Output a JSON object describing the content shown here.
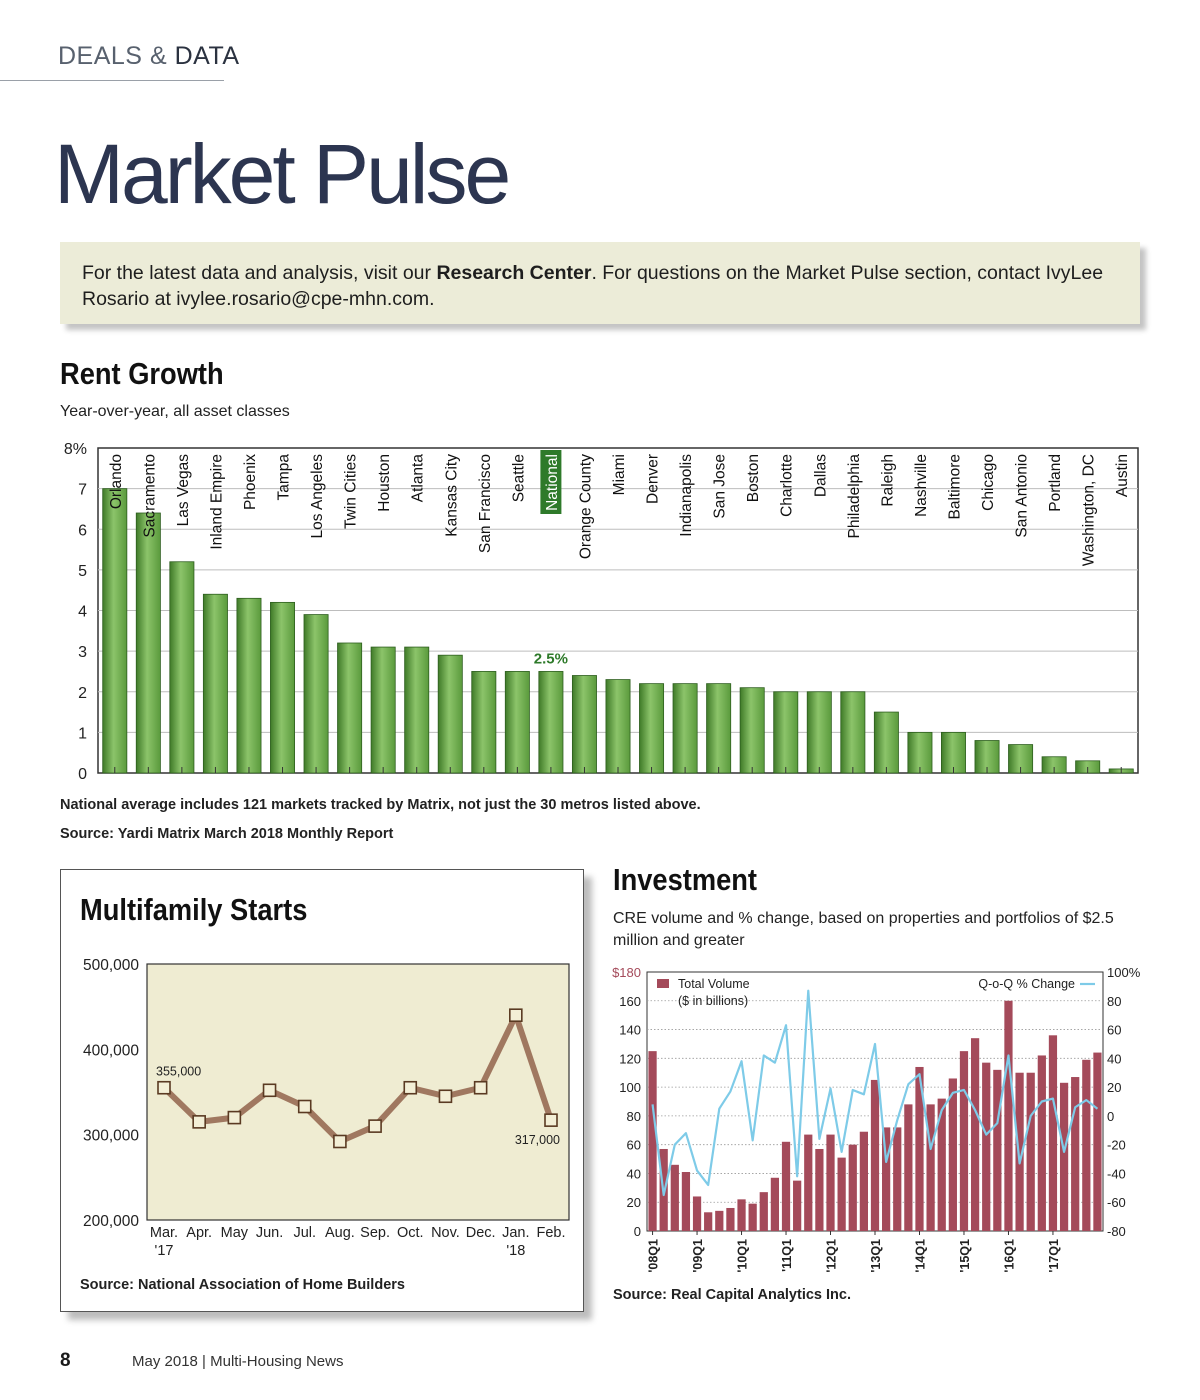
{
  "header": {
    "section_deals": "DEALS",
    "section_amp": "&",
    "section_data": "DATA",
    "title": "Market Pulse"
  },
  "info": {
    "text1": "For the latest data and analysis, visit our ",
    "bold": "Research Center",
    "text2": ". For questions on the Market Pulse section, contact IvyLee Rosario at ivylee.rosario@cpe-mhn.com."
  },
  "rent": {
    "title": "Rent Growth",
    "subtitle": "Year-over-year, all asset classes",
    "note": "National average includes 121 markets tracked by Matrix, not just the 30 metros listed above.",
    "source": "Source: Yardi Matrix March 2018 Monthly Report"
  },
  "starts": {
    "title": "Multifamily Starts",
    "source": "Source: National Association of Home Builders"
  },
  "investment": {
    "title": "Investment",
    "subtitle_line1": "CRE volume and % change, based on properties and portfolios of $2.5",
    "subtitle_line2": "million and greater",
    "source": "Source: Real Capital Analytics Inc."
  },
  "footer": {
    "page": "8",
    "text": "May 2018  |  Multi-Housing News"
  },
  "colors": {
    "bar_green": "#5a9a3c",
    "national_green": "#2e7a2a",
    "starts_line": "#a07860",
    "starts_bg": "#efecd2",
    "volume_bar": "#a44a5a",
    "qoq_line": "#7ecbe8"
  },
  "chart_data": [
    {
      "type": "bar",
      "title": "Rent Growth",
      "categories": [
        "Orlando",
        "Sacramento",
        "Las Vegas",
        "Inland Empire",
        "Phoenix",
        "Tampa",
        "Los Angeles",
        "Twin Cities",
        "Houston",
        "Atlanta",
        "Kansas City",
        "San Francisco",
        "Seattle",
        "National",
        "Orange County",
        "Miami",
        "Denver",
        "Indianapolis",
        "San Jose",
        "Boston",
        "Charlotte",
        "Dallas",
        "Philadelphia",
        "Raleigh",
        "Nashville",
        "Baltimore",
        "Chicago",
        "San Antonio",
        "Portland",
        "Washington, DC",
        "Austin"
      ],
      "values": [
        7.0,
        6.4,
        5.2,
        4.4,
        4.3,
        4.2,
        3.9,
        3.2,
        3.1,
        3.1,
        2.9,
        2.5,
        2.5,
        2.5,
        2.4,
        2.3,
        2.2,
        2.2,
        2.2,
        2.1,
        2.0,
        2.0,
        2.0,
        1.5,
        1.0,
        1.0,
        0.8,
        0.7,
        0.4,
        0.3,
        0.1
      ],
      "highlight": "National",
      "highlight_label": "2.5%",
      "ylim": [
        0,
        8
      ],
      "yticks": [
        "0",
        "1",
        "2",
        "3",
        "4",
        "5",
        "6",
        "7",
        "8%"
      ],
      "grid": true
    },
    {
      "type": "line",
      "title": "Multifamily Starts",
      "categories": [
        "Mar.",
        "Apr.",
        "May",
        "Jun.",
        "Jul.",
        "Aug.",
        "Sep.",
        "Oct.",
        "Nov.",
        "Dec.",
        "Jan.",
        "Feb."
      ],
      "year_labels": [
        "'17",
        "",
        "",
        "",
        "",
        "",
        "",
        "",
        "",
        "",
        "'18",
        ""
      ],
      "values": [
        355000,
        315000,
        320000,
        352000,
        333000,
        292000,
        310000,
        355000,
        345000,
        355000,
        440000,
        317000
      ],
      "data_labels": [
        {
          "index": 0,
          "text": "355,000"
        },
        {
          "index": 11,
          "text": "317,000"
        }
      ],
      "ylim": [
        200000,
        500000
      ],
      "yticks": [
        "200,000",
        "300,000",
        "400,000",
        "500,000"
      ],
      "grid": false
    },
    {
      "type": "bar",
      "title": "Investment",
      "x_tick_labels": [
        "'08Q1",
        "'09Q1",
        "'10Q1",
        "'11Q1",
        "'12Q1",
        "'13Q1",
        "'14Q1",
        "'15Q1",
        "'16Q1",
        "'17Q1"
      ],
      "series": [
        {
          "name": "Total Volume ($ in billions)",
          "axis": "left",
          "type": "bar",
          "values": [
            125,
            57,
            46,
            41,
            24,
            13,
            14,
            16,
            22,
            19,
            27,
            37,
            62,
            35,
            67,
            57,
            67,
            51,
            60,
            69,
            105,
            72,
            72,
            88,
            114,
            88,
            92,
            106,
            125,
            134,
            117,
            112,
            160,
            110,
            110,
            122,
            136,
            103,
            107,
            119,
            124
          ]
        },
        {
          "name": "Q-o-Q % Change",
          "axis": "right",
          "type": "line",
          "values": [
            8,
            -55,
            -20,
            -12,
            -38,
            -48,
            5,
            17,
            38,
            -17,
            42,
            37,
            63,
            -42,
            87,
            -16,
            19,
            -25,
            18,
            15,
            50,
            -32,
            -3,
            22,
            29,
            -23,
            4,
            16,
            18,
            4,
            -13,
            -5,
            42,
            -33,
            0,
            10,
            12,
            -25,
            6,
            11,
            5
          ]
        }
      ],
      "ylim_left": [
        0,
        180
      ],
      "yticks_left": [
        "0",
        "20",
        "40",
        "60",
        "80",
        "100",
        "120",
        "140",
        "160",
        "$180"
      ],
      "ylim_right": [
        -80,
        100
      ],
      "yticks_right": [
        "-80",
        "-60",
        "-40",
        "-20",
        "0",
        "20",
        "40",
        "60",
        "80",
        "100%"
      ],
      "legend": [
        "Total Volume",
        "($ in billions)",
        "Q-o-Q % Change"
      ],
      "grid": true
    }
  ]
}
